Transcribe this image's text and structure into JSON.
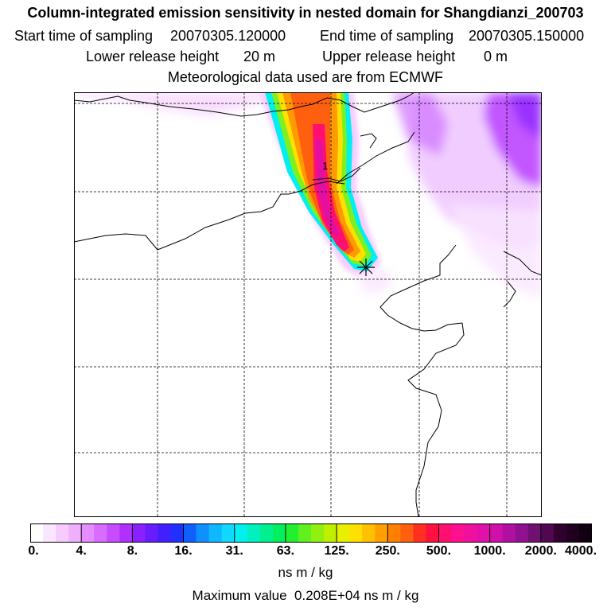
{
  "header": {
    "title": "Column-integrated emission sensitivity in nested domain for Shangdianzi_200703",
    "start_label": "Start time of sampling",
    "start_value": "20070305.120000",
    "end_label": "End time of sampling",
    "end_value": "20070305.150000",
    "lower_label": "Lower release height",
    "lower_value": "20 m",
    "upper_label": "Upper release height",
    "upper_value": "0 m",
    "met_text": "Meteorological data used are from ECMWF"
  },
  "map": {
    "station_marker": "star-cross-marker",
    "plume_label": "1",
    "colors": {
      "coastline": "#000000",
      "grid": "#000000",
      "plume_core": "#ff0a6e",
      "plume_mid": "#ff9a00",
      "plume_outer": "#00e0ff",
      "background_haze": "#c060ff"
    }
  },
  "colorbar": {
    "ticks": [
      "0.",
      "4.",
      "8.",
      "16.",
      "31.",
      "63.",
      "125.",
      "250.",
      "500.",
      "1000.",
      "2000.",
      "4000."
    ],
    "unit": "ns m / kg",
    "max_label": "Maximum value",
    "max_value": "0.208E+04 ns m / kg",
    "colors": [
      "#ffffff",
      "#fbe6ff",
      "#f6ccff",
      "#f0b0ff",
      "#e58cff",
      "#d76cff",
      "#c84cff",
      "#b030ff",
      "#8a20ff",
      "#6a1cff",
      "#4020ff",
      "#2030ff",
      "#1060ff",
      "#1090ff",
      "#10b8ff",
      "#10d8ff",
      "#00f0f0",
      "#00f0c0",
      "#00f090",
      "#00f060",
      "#20f030",
      "#60f020",
      "#90f010",
      "#c0f000",
      "#e8f000",
      "#ffe000",
      "#ffc000",
      "#ffa000",
      "#ff8000",
      "#ff6010",
      "#ff3020",
      "#ff1040",
      "#ff1070",
      "#ff1090",
      "#f010a0",
      "#e010a8",
      "#d010a8",
      "#b010a0",
      "#901090",
      "#701070",
      "#500850",
      "#300030",
      "#200020",
      "#100010"
    ]
  }
}
